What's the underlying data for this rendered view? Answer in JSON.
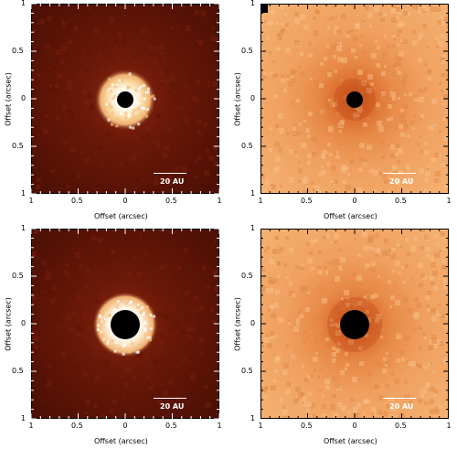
{
  "axis": {
    "ylabel": "Offset (arcsec)",
    "xlabel": "Offset (arcsec)",
    "y_ticks": [
      "1",
      "0.5",
      "0",
      "0.5",
      "1"
    ],
    "x_ticks": [
      "1",
      "0.5",
      "0",
      "0.5",
      "1"
    ]
  },
  "panels": [
    {
      "name": "top-left",
      "scale_label": "20 AU",
      "colormap": "dark",
      "mask": "small"
    },
    {
      "name": "top-right",
      "scale_label": "20 AU",
      "colormap": "light",
      "mask": "small"
    },
    {
      "name": "bottom-left",
      "scale_label": "20 AU",
      "colormap": "dark",
      "mask": "large"
    },
    {
      "name": "bottom-right",
      "scale_label": "20 AU",
      "colormap": "light",
      "mask": "large"
    }
  ],
  "colors": {
    "dark_bg": "#6a1808",
    "dark_bg_edge": "#4a0f04",
    "ring_bright": "#fff7e8",
    "ring_mid": "#f0b070",
    "light_bg": "#f0a060",
    "light_inner": "#d8682a",
    "mask": "#000000"
  }
}
